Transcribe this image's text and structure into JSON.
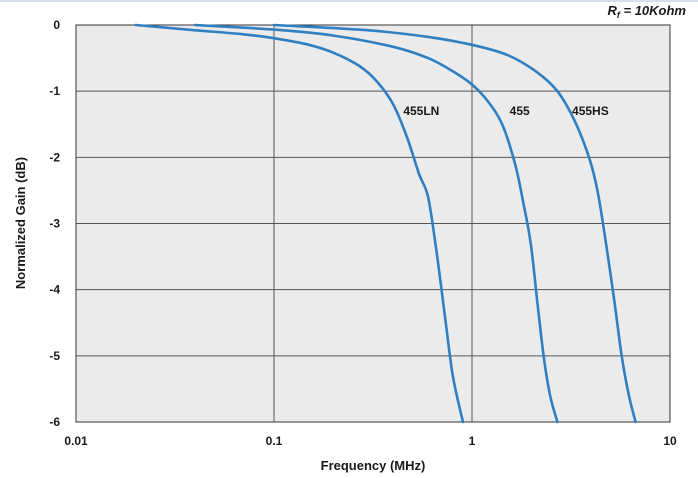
{
  "chart_data": {
    "type": "line",
    "x_scale": "log",
    "xlim": [
      0.01,
      10
    ],
    "ylim": [
      -6,
      0
    ],
    "xlabel": "Frequency (MHz)",
    "ylabel": "Normalized Gain (dB)",
    "annotation": {
      "prefix": "R",
      "sub": "f",
      "suffix": " = 10Kohm"
    },
    "grid": true,
    "x_ticks": [
      {
        "value": 0.01,
        "label": "0.01"
      },
      {
        "value": 0.1,
        "label": "0.1"
      },
      {
        "value": 1,
        "label": "1"
      },
      {
        "value": 10,
        "label": "10"
      }
    ],
    "y_ticks": [
      {
        "value": 0,
        "label": "0"
      },
      {
        "value": -1,
        "label": "-1"
      },
      {
        "value": -2,
        "label": "-2"
      },
      {
        "value": -3,
        "label": "-3"
      },
      {
        "value": -4,
        "label": "-4"
      },
      {
        "value": -5,
        "label": "-5"
      },
      {
        "value": -6,
        "label": "-6"
      }
    ],
    "line_color": "#2f7fc1",
    "series": [
      {
        "name": "455LN",
        "label_at": [
          0.45,
          -1.3
        ],
        "points": [
          [
            0.02,
            0
          ],
          [
            0.04,
            -0.08
          ],
          [
            0.07,
            -0.14
          ],
          [
            0.1,
            -0.2
          ],
          [
            0.15,
            -0.3
          ],
          [
            0.2,
            -0.42
          ],
          [
            0.27,
            -0.62
          ],
          [
            0.33,
            -0.85
          ],
          [
            0.4,
            -1.2
          ],
          [
            0.47,
            -1.7
          ],
          [
            0.54,
            -2.25
          ],
          [
            0.6,
            -2.6
          ],
          [
            0.66,
            -3.4
          ],
          [
            0.73,
            -4.4
          ],
          [
            0.8,
            -5.3
          ],
          [
            0.9,
            -6
          ]
        ]
      },
      {
        "name": "455",
        "label_at": [
          1.55,
          -1.3
        ],
        "points": [
          [
            0.04,
            0
          ],
          [
            0.1,
            -0.07
          ],
          [
            0.2,
            -0.16
          ],
          [
            0.4,
            -0.33
          ],
          [
            0.6,
            -0.5
          ],
          [
            0.8,
            -0.7
          ],
          [
            1,
            -0.9
          ],
          [
            1.2,
            -1.15
          ],
          [
            1.42,
            -1.5
          ],
          [
            1.65,
            -2.1
          ],
          [
            1.82,
            -2.7
          ],
          [
            1.98,
            -3.3
          ],
          [
            2.14,
            -4.2
          ],
          [
            2.3,
            -5
          ],
          [
            2.48,
            -5.6
          ],
          [
            2.7,
            -6
          ]
        ]
      },
      {
        "name": "455HS",
        "label_at": [
          3.2,
          -1.3
        ],
        "points": [
          [
            0.1,
            0
          ],
          [
            0.3,
            -0.08
          ],
          [
            0.6,
            -0.18
          ],
          [
            1,
            -0.3
          ],
          [
            1.5,
            -0.45
          ],
          [
            2.1,
            -0.7
          ],
          [
            2.7,
            -1.0
          ],
          [
            3.3,
            -1.45
          ],
          [
            3.9,
            -2.0
          ],
          [
            4.3,
            -2.5
          ],
          [
            4.75,
            -3.3
          ],
          [
            5.25,
            -4.2
          ],
          [
            5.7,
            -5
          ],
          [
            6.2,
            -5.6
          ],
          [
            6.7,
            -6
          ]
        ]
      }
    ]
  }
}
